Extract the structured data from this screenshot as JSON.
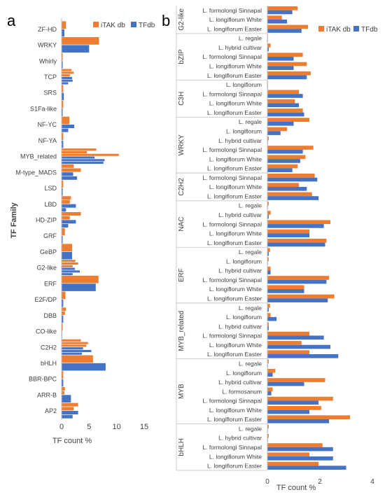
{
  "panels": {
    "a": {
      "letter": "a"
    },
    "b": {
      "letter": "b"
    }
  },
  "colors": {
    "itak": "#ED7D31",
    "tfdb": "#4472C4",
    "axis": "#BFBFBF",
    "text": "#404040"
  },
  "chart_data": [
    {
      "panel": "a",
      "type": "bar",
      "orientation": "horizontal",
      "categories": [
        "ZF-HD",
        "WRKY",
        "Whirly",
        "TCP",
        "SRS",
        "S1Fa-like",
        "NF-YC",
        "NF-YA",
        "MYB_related",
        "M-type_MADS",
        "LSD",
        "LBD",
        "HD-ZIP",
        "GRF",
        "GeBP",
        "G2-like",
        "ERF",
        "E2F/DP",
        "DBB",
        "CO-like",
        "C2H2",
        "bHLH",
        "BBR-BPC",
        "ARR-B",
        "AP2"
      ],
      "bars": [
        {
          "category": "ZF-HD",
          "series": "iTAK db",
          "values": [
            0.8
          ]
        },
        {
          "category": "ZF-HD",
          "series": "TFdb",
          "values": [
            0.5
          ]
        },
        {
          "category": "WRKY",
          "series": "iTAK db",
          "values": [
            6.8
          ]
        },
        {
          "category": "WRKY",
          "series": "TFdb",
          "values": [
            5.0
          ]
        },
        {
          "category": "Whirly",
          "series": "iTAK db",
          "values": [
            0.2
          ]
        },
        {
          "category": "Whirly",
          "series": "TFdb",
          "values": [
            0.2
          ]
        },
        {
          "category": "TCP",
          "series": "iTAK db",
          "values": [
            1.8,
            2.2,
            1.5
          ]
        },
        {
          "category": "TCP",
          "series": "TFdb",
          "values": [
            1.9,
            2.0,
            1.2
          ]
        },
        {
          "category": "SRS",
          "series": "iTAK db",
          "values": [
            0.3
          ]
        },
        {
          "category": "SRS",
          "series": "TFdb",
          "values": [
            0.4
          ]
        },
        {
          "category": "S1Fa-like",
          "series": "iTAK db",
          "values": [
            0.3
          ]
        },
        {
          "category": "S1Fa-like",
          "series": "TFdb",
          "values": [
            0.2
          ]
        },
        {
          "category": "NF-YC",
          "series": "iTAK db",
          "values": [
            1.4
          ]
        },
        {
          "category": "NF-YC",
          "series": "TFdb",
          "values": [
            2.3,
            1.2
          ]
        },
        {
          "category": "NF-YA",
          "series": "iTAK db",
          "values": [
            0.3
          ]
        },
        {
          "category": "NF-YA",
          "series": "TFdb",
          "values": [
            0.3
          ]
        },
        {
          "category": "MYB_related",
          "series": "iTAK db",
          "values": [
            6.3,
            4.6,
            10.4
          ]
        },
        {
          "category": "MYB_related",
          "series": "TFdb",
          "values": [
            6.0,
            7.8,
            7.6
          ]
        },
        {
          "category": "M-type_MADS",
          "series": "iTAK db",
          "values": [
            2.2,
            3.5
          ]
        },
        {
          "category": "M-type_MADS",
          "series": "TFdb",
          "values": [
            2.1,
            2.8
          ]
        },
        {
          "category": "LSD",
          "series": "iTAK db",
          "values": [
            0.3
          ]
        },
        {
          "category": "LSD",
          "series": "TFdb",
          "values": [
            0.2
          ]
        },
        {
          "category": "LBD",
          "series": "iTAK db",
          "values": [
            1.7,
            1.5
          ]
        },
        {
          "category": "LBD",
          "series": "TFdb",
          "values": [
            2.6,
            0.8
          ]
        },
        {
          "category": "HD-ZIP",
          "series": "iTAK db",
          "values": [
            3.5,
            1.5
          ]
        },
        {
          "category": "HD-ZIP",
          "series": "TFdb",
          "values": [
            2.6,
            1.2
          ]
        },
        {
          "category": "GRF",
          "series": "iTAK db",
          "values": [
            0.6
          ]
        },
        {
          "category": "GRF",
          "series": "TFdb",
          "values": [
            0.2
          ]
        },
        {
          "category": "GeBP",
          "series": "iTAK db",
          "values": [
            1.9
          ]
        },
        {
          "category": "GeBP",
          "series": "TFdb",
          "values": [
            1.9
          ]
        },
        {
          "category": "G2-like",
          "series": "iTAK db",
          "values": [
            2.5,
            3.0,
            2.0
          ]
        },
        {
          "category": "G2-like",
          "series": "TFdb",
          "values": [
            2.4,
            3.3,
            2.0
          ]
        },
        {
          "category": "ERF",
          "series": "iTAK db",
          "values": [
            6.7
          ]
        },
        {
          "category": "ERF",
          "series": "TFdb",
          "values": [
            6.2
          ]
        },
        {
          "category": "E2F/DP",
          "series": "iTAK db",
          "values": [
            0.7
          ]
        },
        {
          "category": "E2F/DP",
          "series": "TFdb",
          "values": [
            0.3
          ]
        },
        {
          "category": "DBB",
          "series": "iTAK db",
          "values": [
            0.8,
            0.6
          ]
        },
        {
          "category": "DBB",
          "series": "TFdb",
          "values": [
            0.3
          ]
        },
        {
          "category": "CO-like",
          "series": "iTAK db",
          "values": [
            0.2
          ]
        },
        {
          "category": "CO-like",
          "series": "TFdb",
          "values": [
            0.1
          ]
        },
        {
          "category": "C2H2",
          "series": "iTAK db",
          "values": [
            3.5,
            4.8,
            4.5
          ]
        },
        {
          "category": "C2H2",
          "series": "TFdb",
          "values": [
            3.9,
            5.4,
            3.7
          ]
        },
        {
          "category": "bHLH",
          "series": "iTAK db",
          "values": [
            5.7
          ]
        },
        {
          "category": "bHLH",
          "series": "TFdb",
          "values": [
            8.0
          ]
        },
        {
          "category": "BBR-BPC",
          "series": "iTAK db",
          "values": [
            0.3
          ]
        },
        {
          "category": "BBR-BPC",
          "series": "TFdb",
          "values": [
            0.3
          ]
        },
        {
          "category": "ARR-B",
          "series": "iTAK db",
          "values": [
            0.6,
            0.5
          ]
        },
        {
          "category": "ARR-B",
          "series": "TFdb",
          "values": [
            1.7
          ]
        },
        {
          "category": "AP2",
          "series": "iTAK db",
          "values": [
            3.0,
            2.2
          ]
        },
        {
          "category": "AP2",
          "series": "TFdb",
          "values": [
            3.0,
            2.0
          ]
        }
      ],
      "series": [
        {
          "name": "iTAK db"
        },
        {
          "name": "TFdb"
        }
      ],
      "xlabel": "TF count %",
      "ylabel": "TF Family",
      "xticks": [
        "0",
        "5",
        "10",
        "15"
      ],
      "xlim": [
        0,
        15
      ],
      "legend": "top-right",
      "grid": false
    },
    {
      "panel": "b",
      "type": "bar",
      "orientation": "horizontal",
      "groups": [
        {
          "family": "G2-like",
          "rows": [
            {
              "label": "L. formolongi Sinnapal",
              "itak": 1.15,
              "tfdb": 0.95
            },
            {
              "label": "L. longiflorum White",
              "itak": 0.55,
              "tfdb": 0.75
            },
            {
              "label": "L. longiflorum Easter",
              "itak": 1.55,
              "tfdb": 1.3
            }
          ]
        },
        {
          "family": "bZIP",
          "rows": [
            {
              "label": "L. regale",
              "itak": 0.02,
              "tfdb": 0.02
            },
            {
              "label": "L. hybrid cultivar",
              "itak": 0.12,
              "tfdb": 0.05
            },
            {
              "label": "L. formolongi Sinnapal",
              "itak": 1.35,
              "tfdb": 1.0
            },
            {
              "label": "L. longiflorum White",
              "itak": 1.5,
              "tfdb": 1.0
            },
            {
              "label": "L. longiflorum Easter",
              "itak": 1.65,
              "tfdb": 1.5
            }
          ]
        },
        {
          "family": "C3H",
          "rows": [
            {
              "label": "L. longiflorum",
              "itak": 0.02,
              "tfdb": 0.02
            },
            {
              "label": "L. formolongi Sinnapal",
              "itak": 1.2,
              "tfdb": 1.35
            },
            {
              "label": "L. longiflorum White",
              "itak": 1.05,
              "tfdb": 1.2
            },
            {
              "label": "L. longiflorum Easter",
              "itak": 1.35,
              "tfdb": 1.4
            }
          ]
        },
        {
          "family": "WRKY",
          "rows": [
            {
              "label": "L. regale",
              "itak": 1.6,
              "tfdb": 1.0
            },
            {
              "label": "L. longiflorum",
              "itak": 0.75,
              "tfdb": 0.5
            },
            {
              "label": "L. hybrid cultivar",
              "itak": 0.05,
              "tfdb": 0.02
            },
            {
              "label": "L. formolongi Sinnapal",
              "itak": 1.75,
              "tfdb": 1.35
            },
            {
              "label": "L. longiflorum White",
              "itak": 1.45,
              "tfdb": 1.25
            },
            {
              "label": "L. longiflorum Easter",
              "itak": 1.15,
              "tfdb": 0.95
            }
          ]
        },
        {
          "family": "C2H2",
          "rows": [
            {
              "label": "L. formolongi Sinnapal",
              "itak": 1.8,
              "tfdb": 1.9
            },
            {
              "label": "L. longiflorum White",
              "itak": 1.2,
              "tfdb": 1.5
            },
            {
              "label": "L. longiflorum Easter",
              "itak": 1.7,
              "tfdb": 1.95
            }
          ]
        },
        {
          "family": "NAC",
          "rows": [
            {
              "label": "L. regale",
              "itak": 0.05,
              "tfdb": 0.02
            },
            {
              "label": "L. hybrid cultivar",
              "itak": 0.12,
              "tfdb": 0.05
            },
            {
              "label": "L. formolongi Sinnapal",
              "itak": 2.4,
              "tfdb": 2.15
            },
            {
              "label": "L. longiflorum White",
              "itak": 1.6,
              "tfdb": 1.6
            },
            {
              "label": "L. longiflorum Easter",
              "itak": 2.25,
              "tfdb": 2.2
            }
          ]
        },
        {
          "family": "ERF",
          "rows": [
            {
              "label": "L. regale",
              "itak": 0.1,
              "tfdb": 0.05
            },
            {
              "label": "L. longiflorum",
              "itak": 0.05,
              "tfdb": 0.02
            },
            {
              "label": "L. hybrid cultivar",
              "itak": 0.12,
              "tfdb": 0.12
            },
            {
              "label": "L. formolongi Sinnapal",
              "itak": 2.35,
              "tfdb": 2.25
            },
            {
              "label": "L. longiflorum White",
              "itak": 1.4,
              "tfdb": 1.4
            },
            {
              "label": "L. longiflorum Easter",
              "itak": 2.55,
              "tfdb": 2.3
            }
          ]
        },
        {
          "family": "MYB_related",
          "rows": [
            {
              "label": "L. regale",
              "itak": 0.1,
              "tfdb": 0.05
            },
            {
              "label": "L. longiflorum",
              "itak": 0.12,
              "tfdb": 0.35
            },
            {
              "label": "L. hybrid cultivar",
              "itak": 0.05,
              "tfdb": 0.05
            },
            {
              "label": "L. formolongi Sinnapal",
              "itak": 1.6,
              "tfdb": 2.15
            },
            {
              "label": "L. longiflorum White",
              "itak": 1.3,
              "tfdb": 2.4
            },
            {
              "label": "L. longiflorum Easter",
              "itak": 1.6,
              "tfdb": 2.7
            }
          ]
        },
        {
          "family": "MYB",
          "rows": [
            {
              "label": "L. regale",
              "itak": 0.05,
              "tfdb": 0.02
            },
            {
              "label": "L. longiflorum",
              "itak": 0.3,
              "tfdb": 0.2
            },
            {
              "label": "L. hybrid cultivar",
              "itak": 2.2,
              "tfdb": 1.4
            },
            {
              "label": "L. formosanum",
              "itak": 0.2,
              "tfdb": 0.15
            },
            {
              "label": "L. formolongi Sinnapal",
              "itak": 2.5,
              "tfdb": 1.95
            },
            {
              "label": "L. longiflorum White",
              "itak": 2.05,
              "tfdb": 1.6
            },
            {
              "label": "L. longiflorum Easter",
              "itak": 3.15,
              "tfdb": 2.35
            }
          ]
        },
        {
          "family": "bHLH",
          "rows": [
            {
              "label": "L. regale",
              "itak": 0.05,
              "tfdb": 0.02
            },
            {
              "label": "L. hybrid cultivar",
              "itak": 0.05,
              "tfdb": 0.02
            },
            {
              "label": "L. formolongi Sinnapal",
              "itak": 2.1,
              "tfdb": 2.5
            },
            {
              "label": "L. longiflorum White",
              "itak": 1.6,
              "tfdb": 2.5
            },
            {
              "label": "L. longiflorum Easter",
              "itak": 1.95,
              "tfdb": 3.0
            }
          ]
        }
      ],
      "series": [
        {
          "name": "iTAK db"
        },
        {
          "name": "TFdb"
        }
      ],
      "xlabel": "TF count %",
      "xticks": [
        "0",
        "2",
        "4"
      ],
      "xlim": [
        0,
        4
      ],
      "legend": "top-right",
      "grid": false
    }
  ]
}
